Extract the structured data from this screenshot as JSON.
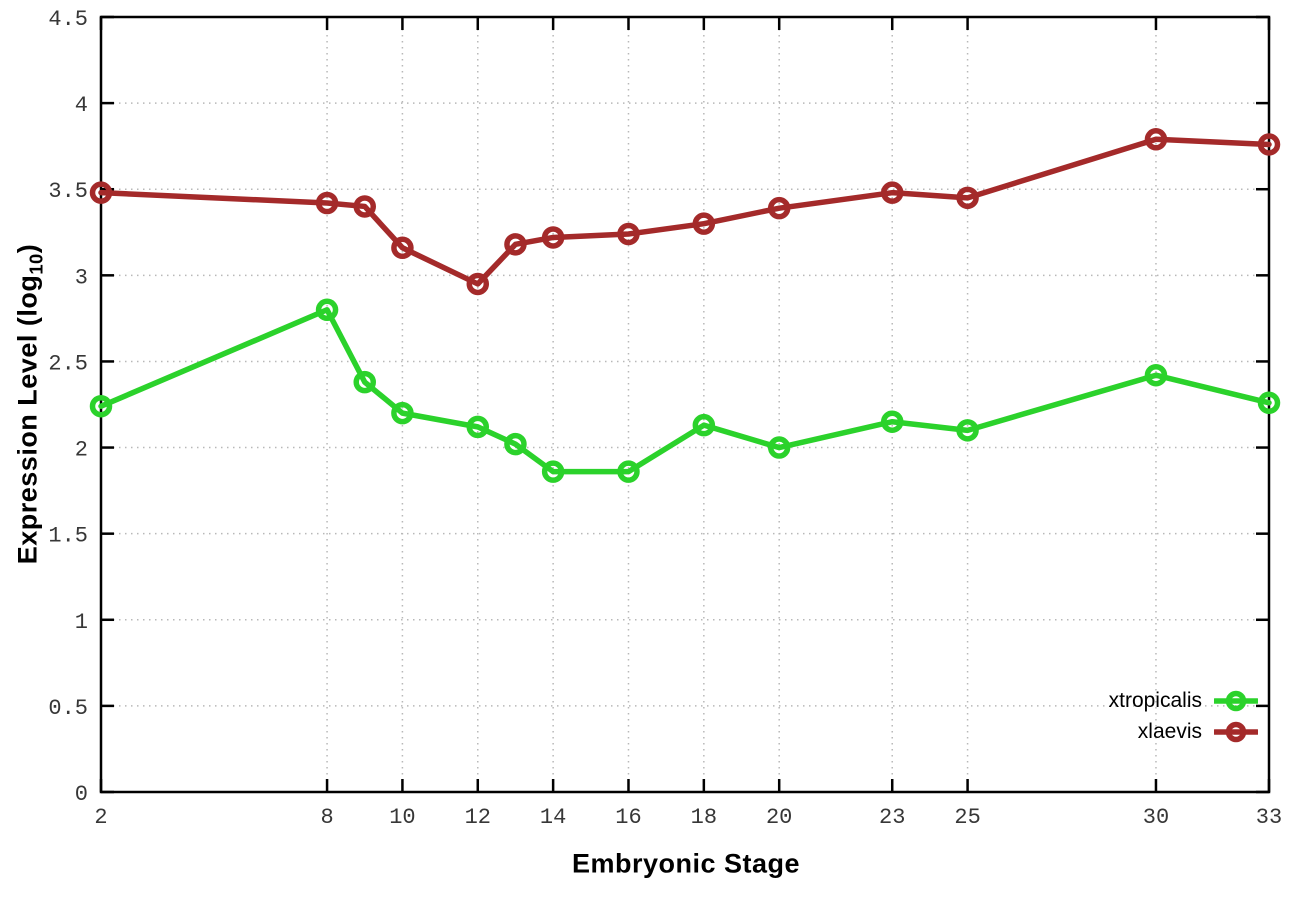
{
  "chart_data": {
    "type": "line",
    "title": "",
    "xlabel": "Embryonic Stage",
    "ylabel": "Expression Level (log10)",
    "ylabel_parts": {
      "main": "Expression Level (log",
      "sub": "10",
      "end": ")"
    },
    "x": [
      2,
      8,
      9,
      10,
      12,
      13,
      14,
      16,
      18,
      20,
      23,
      25,
      30,
      33
    ],
    "series": [
      {
        "name": "xtropicalis",
        "color": "#2BD22B",
        "values": [
          2.24,
          2.8,
          2.38,
          2.2,
          2.12,
          2.02,
          1.86,
          1.86,
          2.13,
          2.0,
          2.15,
          2.1,
          2.42,
          2.26
        ]
      },
      {
        "name": "xlaevis",
        "color": "#A42A2A",
        "values": [
          3.48,
          3.42,
          3.4,
          3.16,
          2.95,
          3.18,
          3.22,
          3.24,
          3.3,
          3.39,
          3.48,
          3.45,
          3.79,
          3.76
        ]
      }
    ],
    "xlim": [
      2,
      33
    ],
    "ylim": [
      0,
      4.5
    ],
    "xticks": {
      "values": [
        2,
        8,
        10,
        12,
        14,
        16,
        18,
        20,
        23,
        25,
        30,
        33
      ],
      "labels": [
        "2",
        "8",
        "10",
        "12",
        "14",
        "16",
        "18",
        "20",
        "23",
        "25",
        "30",
        "33"
      ]
    },
    "yticks": {
      "values": [
        0,
        0.5,
        1,
        1.5,
        2,
        2.5,
        3,
        3.5,
        4,
        4.5
      ],
      "labels": [
        "0",
        "0.5",
        "1",
        "1.5",
        "2",
        "2.5",
        "3",
        "3.5",
        "4",
        "4.5"
      ]
    },
    "grid": true,
    "legend_position": "inside-bottom-right",
    "axis_color": "#000000",
    "grid_color": "#b8b8b8",
    "tick_label_color": "#373737"
  }
}
